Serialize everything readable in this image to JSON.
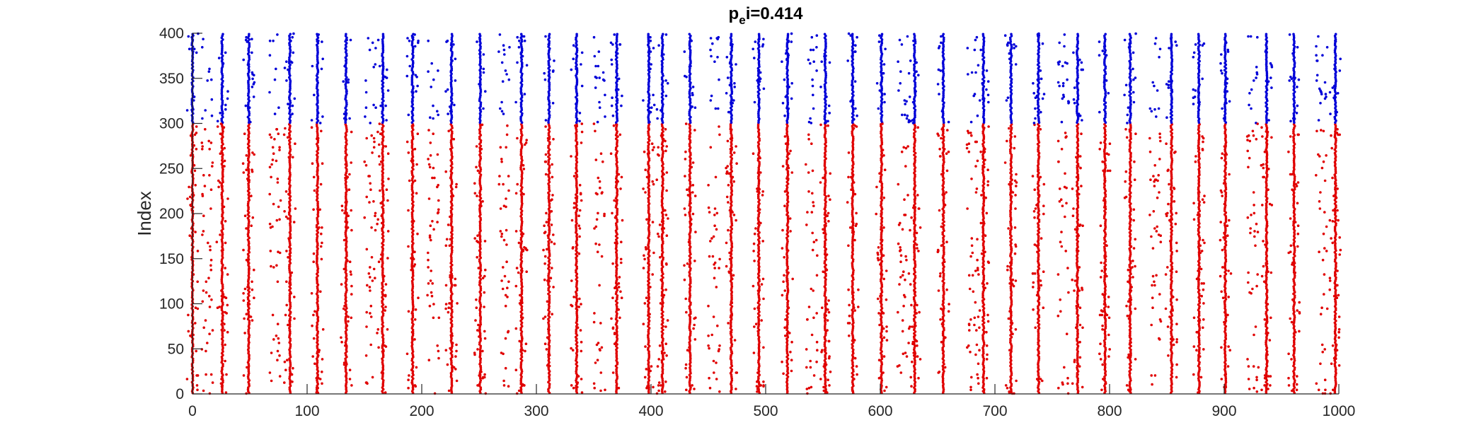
{
  "chart_data": {
    "type": "scatter",
    "title_main": "p",
    "title_sub": "e",
    "title_rest": "i=0.414",
    "xlabel": "",
    "ylabel": "Index",
    "xlim": [
      0,
      1000
    ],
    "ylim": [
      0,
      400
    ],
    "x_ticks": [
      "0",
      "100",
      "200",
      "300",
      "400",
      "500",
      "600",
      "700",
      "800",
      "900",
      "1000"
    ],
    "y_ticks": [
      "0",
      "50",
      "100",
      "150",
      "200",
      "250",
      "300",
      "350",
      "400"
    ],
    "grid": false,
    "series": [
      {
        "index_range": [
          0,
          300
        ],
        "color": "#e00000"
      },
      {
        "index_range": [
          300,
          400
        ],
        "color": "#0000d8"
      }
    ],
    "burst_times": [
      0,
      26,
      49,
      85,
      109,
      134,
      166,
      192,
      226,
      251,
      287,
      311,
      335,
      370,
      398,
      410,
      434,
      470,
      494,
      519,
      552,
      576,
      601,
      630,
      655,
      690,
      714,
      738,
      772,
      796,
      818,
      854,
      878,
      901,
      937,
      961,
      997
    ],
    "sparse_times": [
      13,
      72,
      155,
      210,
      272,
      355,
      455,
      540,
      620,
      680,
      760,
      840,
      925,
      985
    ]
  },
  "colors": {
    "excitatory": "#e00000",
    "inhibitory": "#0000d8",
    "axis": "#262626"
  }
}
